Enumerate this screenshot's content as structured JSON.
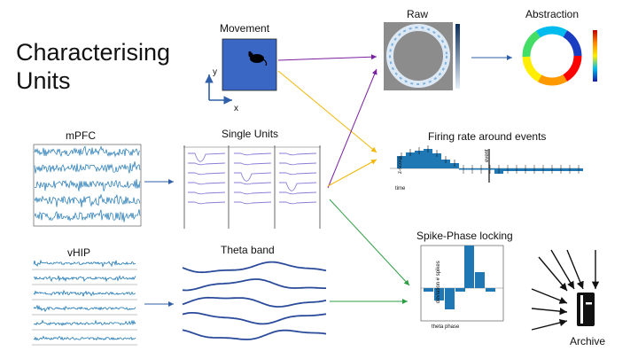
{
  "title_line1": "Characterising",
  "title_line2": "Units",
  "labels": {
    "movement": "Movement",
    "raw": "Raw",
    "abstraction": "Abstraction",
    "mpfc": "mPFC",
    "single_units": "Single Units",
    "firing_rate": "Firing rate around events",
    "vhip": "vHIP",
    "theta_band": "Theta band",
    "spike_phase": "Spike-Phase locking",
    "archive": "Archive"
  },
  "axes": {
    "y": "y",
    "x": "x",
    "zscore": "z-score",
    "time": "time",
    "event": "event",
    "deviation_spikes": "deviation # spikes",
    "theta_phase": "theta phase"
  },
  "colors": {
    "signal_blue": "#1f77b4",
    "movement_box": "#3a66c4",
    "purple_arrow": "#7b1fa2",
    "yellow_arrow": "#f2b705",
    "green_arrow": "#2e9e44",
    "blue_arrow": "#2f5fa8",
    "unit_traces": "#8a7fd6",
    "theta_lines": "#2a4a9a"
  },
  "icons": {
    "mouse": "mouse-icon",
    "archive": "archive-file-icon"
  }
}
